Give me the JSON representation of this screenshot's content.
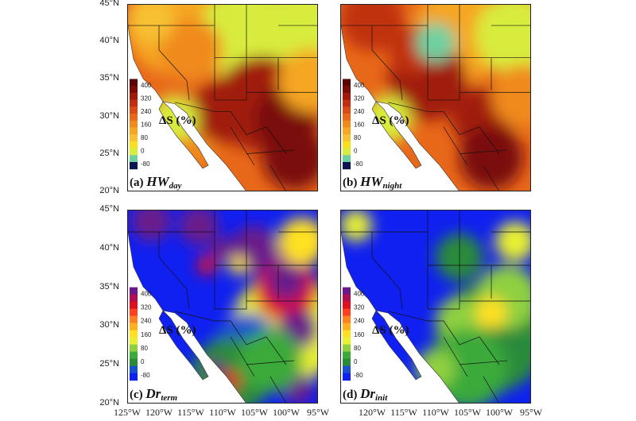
{
  "figure": {
    "lat_labels": [
      "45°N",
      "40°N",
      "35°N",
      "30°N",
      "25°N",
      "20°N"
    ],
    "lon_labels": [
      "125°W",
      "120°W",
      "115°W",
      "110°W",
      "105°W",
      "100°W",
      "95°W"
    ],
    "colorbar_ticks": [
      "400",
      "320",
      "240",
      "160",
      "80",
      "0",
      "-80"
    ],
    "colorbar_title": "ΔS (%)",
    "panels": [
      {
        "tag": "(a)",
        "var": "HW",
        "sub": "day",
        "scheme": "heat"
      },
      {
        "tag": "(b)",
        "var": "HW",
        "sub": "night",
        "scheme": "heat"
      },
      {
        "tag": "(c)",
        "var": "Dr",
        "sub": "term",
        "scheme": "drought"
      },
      {
        "tag": "(d)",
        "var": "Dr",
        "sub": "init",
        "scheme": "drought"
      }
    ],
    "color_schemes": {
      "heat": [
        "#0a1450",
        "#6fd0a0",
        "#d8ec3c",
        "#f6e020",
        "#f7c030",
        "#f5a623",
        "#f08a1c",
        "#e8681a",
        "#d94a14",
        "#c03010",
        "#a01a0c",
        "#7a0c08",
        "#5a0606"
      ],
      "drought": [
        "#1020f0",
        "#1a4fd0",
        "#2a8a3a",
        "#3aaa3a",
        "#8fd040",
        "#e8f030",
        "#ffe020",
        "#ffb020",
        "#ff8020",
        "#ff4020",
        "#e01020",
        "#b01050",
        "#6a1a8a"
      ]
    }
  }
}
